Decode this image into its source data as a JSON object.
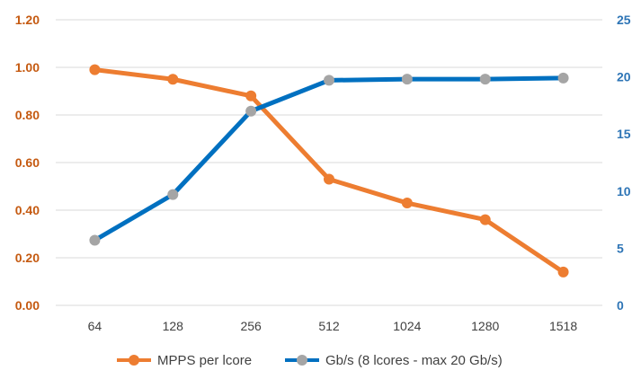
{
  "chart_data": {
    "type": "line",
    "categories": [
      "64",
      "128",
      "256",
      "512",
      "1024",
      "1280",
      "1518"
    ],
    "y_left": {
      "ylim": [
        0,
        1.2
      ],
      "ticks": [
        "0.00",
        "0.20",
        "0.40",
        "0.60",
        "0.80",
        "1.00",
        "1.20"
      ],
      "tick_values": [
        0,
        0.2,
        0.4,
        0.6,
        0.8,
        1.0,
        1.2
      ],
      "color": "#c55a11"
    },
    "y_right": {
      "ylim": [
        0,
        25
      ],
      "ticks": [
        "0",
        "5",
        "10",
        "15",
        "20",
        "25"
      ],
      "tick_values": [
        0,
        5,
        10,
        15,
        20,
        25
      ],
      "color": "#2e75b6"
    },
    "grid": true,
    "legend_position": "bottom",
    "series": [
      {
        "name": "MPPS per lcore",
        "axis": "left",
        "color": "#ed7d31",
        "marker_color": "#ed7d31",
        "values": [
          0.99,
          0.95,
          0.88,
          0.53,
          0.43,
          0.36,
          0.14
        ]
      },
      {
        "name": "Gb/s (8 lcores - max 20 Gb/s)",
        "axis": "right",
        "color": "#0070c0",
        "marker_color": "#a5a5a5",
        "values": [
          5.7,
          9.7,
          17.0,
          19.7,
          19.8,
          19.8,
          19.9
        ]
      }
    ]
  }
}
